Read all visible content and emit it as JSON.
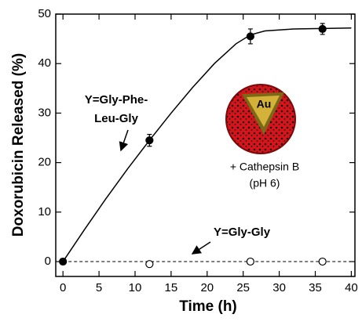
{
  "chart_data": {
    "type": "scatter",
    "x_label": "Time (h)",
    "y_label": "Doxorubicin Released (%)",
    "xlim": [
      -1,
      40.5
    ],
    "ylim": [
      -3,
      50
    ],
    "xticks": [
      0,
      5,
      10,
      15,
      20,
      25,
      30,
      35,
      40
    ],
    "yticks": [
      0,
      10,
      20,
      30,
      40,
      50
    ],
    "series": [
      {
        "color": "#000000",
        "marker": "filled",
        "x": [
          0,
          12,
          26,
          36
        ],
        "values": [
          0,
          24.5,
          45.5,
          47
        ],
        "errors": [
          0.6,
          1.2,
          1.5,
          1.1
        ],
        "line": {
          "style": "solid",
          "x": [
            0,
            3,
            6,
            9,
            12,
            15,
            18,
            21,
            24,
            26,
            28,
            32,
            36,
            40
          ],
          "values": [
            0,
            6.5,
            12.8,
            18.8,
            24.5,
            30,
            35.2,
            40,
            44,
            45.8,
            46.6,
            47,
            47.1,
            47.2
          ]
        }
      },
      {
        "color": "#000000",
        "marker": "open",
        "x": [
          12,
          26,
          36
        ],
        "values": [
          -0.5,
          0,
          0
        ],
        "line": {
          "style": "dashed",
          "x": [
            0,
            40
          ],
          "values": [
            0,
            0
          ]
        }
      }
    ],
    "annotations": [
      "Y=Gly-Phe-",
      "Leu-Gly",
      "Y=Gly-Gly",
      "Au",
      "+ Cathepsin B",
      "(pH 6)"
    ]
  }
}
